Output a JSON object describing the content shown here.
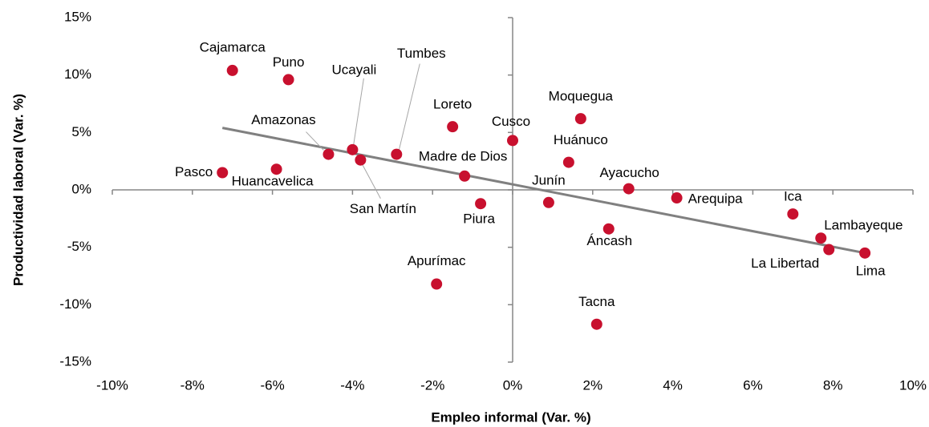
{
  "chart_data": {
    "type": "scatter",
    "x_label": "Empleo informal (Var. %)",
    "y_label": "Productividad laboral (Var. %)",
    "xlim": [
      -10,
      10
    ],
    "ylim": [
      -15,
      15
    ],
    "xticks": [
      {
        "value": -10,
        "label": "-10%"
      },
      {
        "value": -8,
        "label": "-8%"
      },
      {
        "value": -6,
        "label": "-6%"
      },
      {
        "value": -4,
        "label": "-4%"
      },
      {
        "value": -2,
        "label": "-2%"
      },
      {
        "value": 0,
        "label": "0%"
      },
      {
        "value": 2,
        "label": "2%"
      },
      {
        "value": 4,
        "label": "4%"
      },
      {
        "value": 6,
        "label": "6%"
      },
      {
        "value": 8,
        "label": "8%"
      },
      {
        "value": 10,
        "label": "10%"
      }
    ],
    "yticks": [
      {
        "value": -15,
        "label": "-15%"
      },
      {
        "value": -10,
        "label": "-10%"
      },
      {
        "value": -5,
        "label": "-5%"
      },
      {
        "value": 0,
        "label": "0%"
      },
      {
        "value": 5,
        "label": "5%"
      },
      {
        "value": 10,
        "label": "10%"
      },
      {
        "value": 15,
        "label": "15%"
      }
    ],
    "color": "#c8102e",
    "labels": [
      "Cajamarca",
      "Puno",
      "Amazonas",
      "Ucayali",
      "San Martín",
      "Tumbes",
      "Pasco",
      "Huancavelica",
      "Loreto",
      "Madre de Dios",
      "Piura",
      "Apurímac",
      "Cusco",
      "Moquegua",
      "Huánuco",
      "Junín",
      "Ayacucho",
      "Arequipa",
      "Áncash",
      "Tacna",
      "Ica",
      "Lambayeque",
      "La Libertad",
      "Lima"
    ],
    "x": [
      -7.0,
      -5.6,
      -4.6,
      -4.0,
      -3.8,
      -2.9,
      -7.25,
      -5.9,
      -1.5,
      -1.2,
      -0.8,
      -1.9,
      0.0,
      1.7,
      1.4,
      0.9,
      2.9,
      4.1,
      2.4,
      2.1,
      7.0,
      7.7,
      7.9,
      8.8
    ],
    "y": [
      10.4,
      9.6,
      3.1,
      3.5,
      2.6,
      3.1,
      1.5,
      1.8,
      5.5,
      1.2,
      -1.2,
      -8.2,
      4.3,
      6.2,
      2.4,
      -1.1,
      0.1,
      -0.7,
      -3.4,
      -11.7,
      -2.1,
      -4.2,
      -5.2,
      -5.5
    ],
    "trendline": {
      "color": "#808080",
      "x": [
        -7.25,
        8.8
      ],
      "y": [
        5.4,
        -5.5
      ]
    }
  }
}
